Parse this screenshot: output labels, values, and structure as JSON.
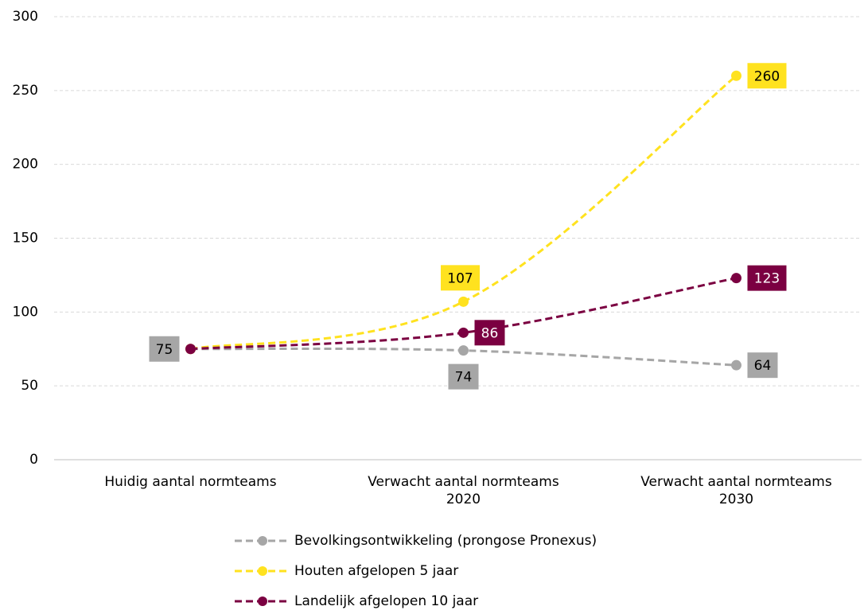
{
  "chart_data": {
    "type": "line",
    "categories": [
      "Huidig aantal normteams",
      "Verwacht aantal normteams\n2020",
      "Verwacht aantal normteams\n2030"
    ],
    "series": [
      {
        "name": "Bevolkingsontwikkeling (prongose Pronexus)",
        "color": "#a6a6a6",
        "label_text_color": "#000000",
        "values": [
          75,
          74,
          64
        ]
      },
      {
        "name": "Houten afgelopen 5 jaar",
        "color": "#ffe21f",
        "label_text_color": "#000000",
        "values": [
          75,
          107,
          260
        ]
      },
      {
        "name": "Landelijk afgelopen 10 jaar",
        "color": "#7b0041",
        "label_text_color": "#ffffff",
        "values": [
          75,
          86,
          123
        ]
      }
    ],
    "ylim": [
      0,
      300
    ],
    "yticks": [
      0,
      50,
      100,
      150,
      200,
      250,
      300
    ],
    "grid": true,
    "legend": "bottom"
  }
}
